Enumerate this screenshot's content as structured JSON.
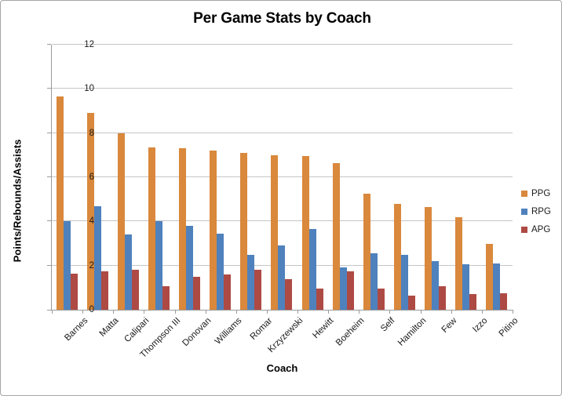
{
  "chart_data": {
    "type": "bar",
    "title": "Per Game Stats by Coach",
    "xlabel": "Coach",
    "ylabel": "Points/Rebounds/Assists",
    "ylim": [
      0,
      12
    ],
    "yticks": [
      0,
      2,
      4,
      6,
      8,
      10,
      12
    ],
    "grid": true,
    "legend_position": "right",
    "categories": [
      "Barnes",
      "Matta",
      "Calipari",
      "Thompson III",
      "Donovan",
      "Williams",
      "Romar",
      "Krzyzewski",
      "Hewitt",
      "Boeheim",
      "Self",
      "Hamilton",
      "Few",
      "Izzo",
      "Pitino"
    ],
    "series": [
      {
        "name": "PPG",
        "color": "#D9883C",
        "values": [
          9.65,
          8.9,
          8.0,
          7.35,
          7.3,
          7.2,
          7.1,
          7.0,
          6.95,
          6.65,
          5.25,
          4.8,
          4.65,
          4.2,
          3.0
        ]
      },
      {
        "name": "RPG",
        "color": "#4F81BD",
        "values": [
          4.0,
          4.7,
          3.4,
          4.0,
          3.8,
          3.45,
          2.5,
          2.9,
          3.65,
          1.9,
          2.55,
          2.5,
          2.2,
          2.05,
          2.1
        ]
      },
      {
        "name": "APG",
        "color": "#AE4A44",
        "values": [
          1.65,
          1.75,
          1.8,
          1.05,
          1.5,
          1.6,
          1.8,
          1.4,
          0.95,
          1.75,
          0.95,
          0.65,
          1.05,
          0.7,
          0.75
        ]
      }
    ]
  },
  "colors": {
    "gridline": "#C5C5C5",
    "axis": "#9B9B9B",
    "canvas_border": "#A6A6A6",
    "tick_text": "#1A1A1A"
  }
}
